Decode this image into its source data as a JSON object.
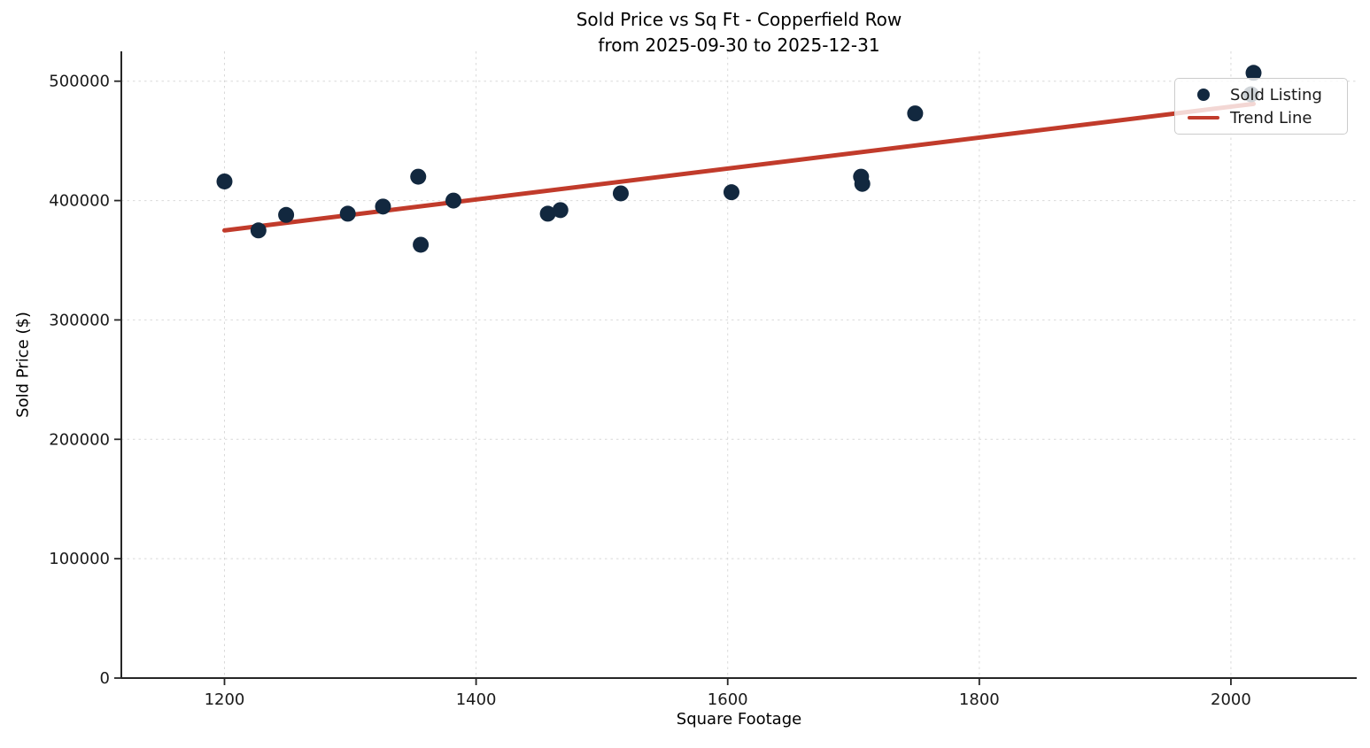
{
  "title": {
    "line1": "Sold Price vs Sq Ft - Copperfield Row",
    "line2": "from 2025-09-30 to 2025-12-31"
  },
  "chart_data": {
    "type": "scatter",
    "title": "Sold Price vs Sq Ft - Copperfield Row\nfrom 2025-09-30 to 2025-12-31",
    "xlabel": "Square Footage",
    "ylabel": "Sold Price ($)",
    "xlim": [
      1118,
      2100
    ],
    "ylim": [
      0,
      525000
    ],
    "x_ticks": [
      1200,
      1400,
      1600,
      1800,
      2000
    ],
    "y_ticks": [
      0,
      100000,
      200000,
      300000,
      400000,
      500000
    ],
    "grid": true,
    "legend_position": "upper right",
    "series": [
      {
        "name": "Sold Listing",
        "type": "scatter",
        "color": "#12283F",
        "points": [
          [
            1200,
            416000
          ],
          [
            1227,
            375000
          ],
          [
            1249,
            388000
          ],
          [
            1298,
            389000
          ],
          [
            1326,
            395000
          ],
          [
            1354,
            420000
          ],
          [
            1356,
            363000
          ],
          [
            1382,
            400000
          ],
          [
            1457,
            389000
          ],
          [
            1467,
            392000
          ],
          [
            1515,
            406000
          ],
          [
            1603,
            407000
          ],
          [
            1706,
            420000
          ],
          [
            1707,
            414000
          ],
          [
            1749,
            473000
          ],
          [
            2016,
            489000
          ],
          [
            2018,
            507000
          ]
        ]
      },
      {
        "name": "Trend Line",
        "type": "line",
        "color": "#C13B2B",
        "points": [
          [
            1200,
            375000
          ],
          [
            2018,
            481000
          ]
        ]
      }
    ]
  },
  "colors": {
    "scatter": "#12283F",
    "trend": "#C13B2B",
    "grid": "#d9d9d9",
    "axis": "#262626",
    "text": "#1a1a1a"
  }
}
